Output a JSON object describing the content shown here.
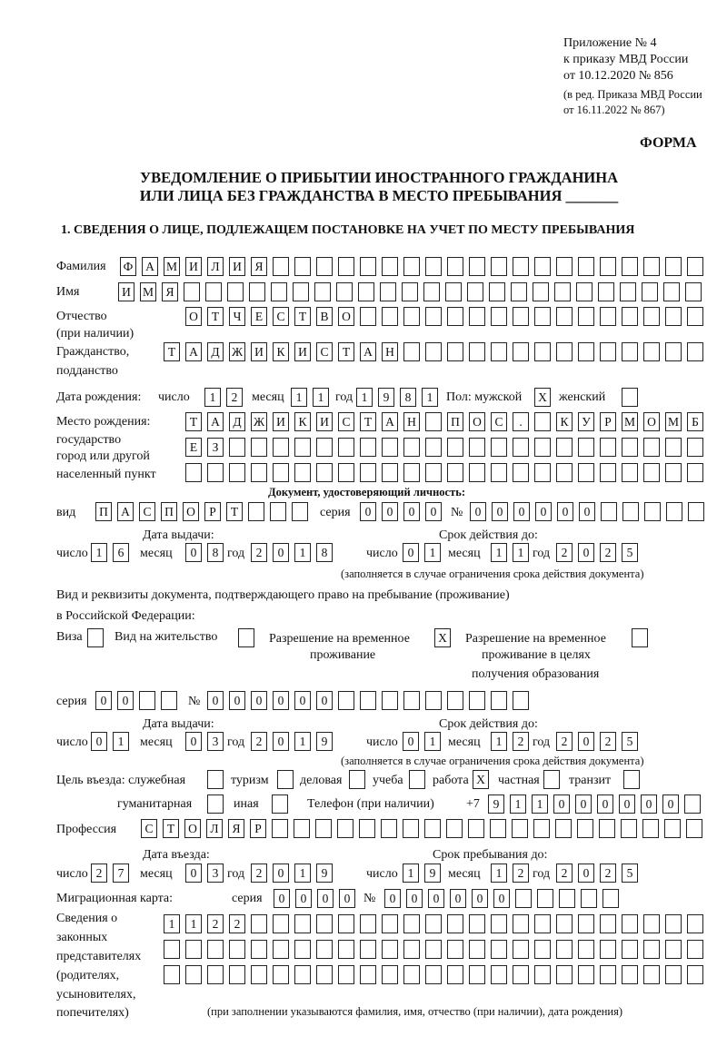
{
  "header": {
    "line1": "Приложение № 4",
    "line2": "к приказу МВД России",
    "line3": "от 10.12.2020 № 856",
    "line4": "(в ред. Приказа МВД России",
    "line5": "от 16.11.2022 № 867)",
    "form_label": "ФОРМА"
  },
  "title": {
    "line1": "УВЕДОМЛЕНИЕ О ПРИБЫТИИ ИНОСТРАННОГО ГРАЖДАНИНА",
    "line2": "ИЛИ ЛИЦА БЕЗ ГРАЖДАНСТВА В МЕСТО ПРЕБЫВАНИЯ _______"
  },
  "section1": {
    "heading": "1. СВЕДЕНИЯ О ЛИЦЕ, ПОДЛЕЖАЩЕМ ПОСТАНОВКЕ НА УЧЕТ ПО МЕСТУ ПРЕБЫВАНИЯ",
    "labels": {
      "surname": "Фамилия",
      "name": "Имя",
      "patronymic1": "Отчество",
      "patronymic2": "(при наличии)",
      "citizenship1": "Гражданство,",
      "citizenship2": "подданство",
      "birth_date": "Дата рождения:",
      "day": "число",
      "month": "месяц",
      "year": "год",
      "sex": "Пол: мужской",
      "female": "женский",
      "birthplace1": "Место рождения:",
      "birthplace2": "государство",
      "birthplace3": "город или другой",
      "birthplace4": "населенный пункт",
      "id_doc_heading": "Документ, удостоверяющий личность:",
      "kind": "вид",
      "series": "серия",
      "number": "№",
      "issue_date": "Дата выдачи:",
      "valid_until": "Срок действия до:",
      "validity_note": "(заполняется в случае ограничения срока действия документа)",
      "permit_heading1": "Вид и реквизиты документа, подтверждающего право на пребывание (проживание)",
      "permit_heading2": "в Российской Федерации:",
      "visa": "Виза",
      "residence_permit": "Вид на жительство",
      "temp_residence1": "Разрешение на временное",
      "temp_residence2": "проживание",
      "temp_edu1": "Разрешение на временное",
      "temp_edu2": "проживание в целях",
      "temp_edu3": "получения образования",
      "purpose": "Цель въезда: служебная",
      "tourism": "туризм",
      "business": "деловая",
      "study": "учеба",
      "work": "работа",
      "private": "частная",
      "transit": "транзит",
      "humanitarian": "гуманитарная",
      "other": "иная",
      "phone": "Телефон (при наличии)",
      "phone_prefix": "+7",
      "profession": "Профессия",
      "entry_date": "Дата въезда:",
      "stay_until": "Срок пребывания до:",
      "migration_card": "Миграционная карта:",
      "reps1": "Сведения о",
      "reps2": "законных",
      "reps3": "представителях",
      "reps4": "(родителях,",
      "reps5": "усыновителях,",
      "reps6": "попечителях)",
      "reps_note": "(при заполнении указываются фамилия, имя, отчество (при наличии), дата рождения)"
    },
    "surname": "ФАМИЛИЯ",
    "name": "ИМЯ",
    "patronymic": "ОТЧЕСТВО",
    "citizenship": "ТАДЖИКИСТАН",
    "birth": {
      "day": "12",
      "month": "11",
      "year": "1981"
    },
    "sex": {
      "male": "X",
      "female": ""
    },
    "birthplace": {
      "line1": "ТАДЖИКИСТАН ПОС. КУРМОМБ",
      "line2": "ЕЗ",
      "line3": ""
    },
    "id_doc": {
      "kind": "ПАСПОРТ",
      "series": "0000",
      "number": "000000",
      "issue": {
        "day": "16",
        "month": "08",
        "year": "2018"
      },
      "valid": {
        "day": "01",
        "month": "11",
        "year": "2025"
      }
    },
    "permit": {
      "visa": "",
      "residence_permit": "",
      "temp_residence": "X",
      "temp_edu": "",
      "series": "00",
      "number": "000000",
      "issue": {
        "day": "01",
        "month": "03",
        "year": "2019"
      },
      "valid": {
        "day": "01",
        "month": "12",
        "year": "2025"
      }
    },
    "purpose": {
      "official": "",
      "tourism": "",
      "business": "",
      "study": "",
      "work": "X",
      "private": "",
      "transit": "",
      "humanitarian": "",
      "other": ""
    },
    "phone": "911000000",
    "profession": "СТОЛЯР",
    "entry": {
      "day": "27",
      "month": "03",
      "year": "2019"
    },
    "stay": {
      "day": "19",
      "month": "12",
      "year": "2025"
    },
    "migration_card": {
      "series": "0000",
      "number": "000000"
    },
    "representatives": {
      "line1": "1122",
      "line2": "",
      "line3": ""
    }
  }
}
